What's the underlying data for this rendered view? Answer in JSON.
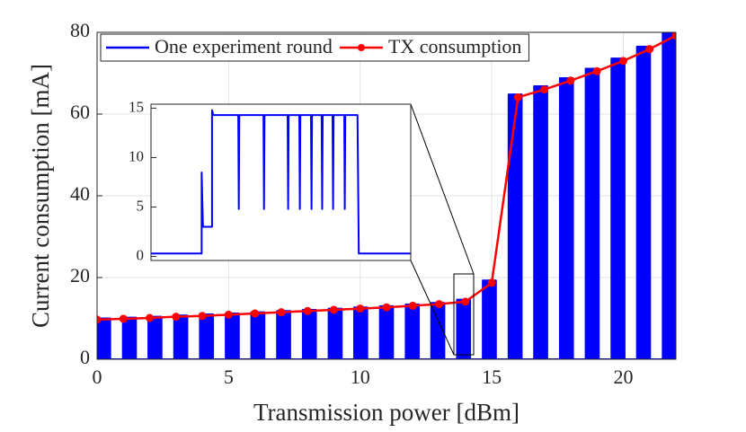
{
  "chart_data": [
    {
      "type": "line",
      "xlabel": "Transmission power [dBm]",
      "ylabel": "Current consumption [mA]",
      "xlim": [
        0,
        22
      ],
      "xticks": [
        0,
        5,
        10,
        15,
        20
      ],
      "ylim": [
        0,
        80
      ],
      "yticks": [
        0,
        20,
        40,
        60,
        80
      ],
      "grid": true,
      "legend": "northwest",
      "series": [
        {
          "name": "One experiment round",
          "color": "#0000ff",
          "fill": true,
          "x": [
            0,
            0,
            0.5,
            0.5,
            0.98,
            0.98,
            1.48,
            1.48,
            1.95,
            1.95,
            2.45,
            2.45,
            2.93,
            2.93,
            3.43,
            3.43,
            3.91,
            3.91,
            4.41,
            4.41,
            4.89,
            4.89,
            5.39,
            5.39,
            5.86,
            5.86,
            6.36,
            6.36,
            6.84,
            6.84,
            7.34,
            7.34,
            7.82,
            7.82,
            8.32,
            8.32,
            8.8,
            8.8,
            9.3,
            9.3,
            9.77,
            9.77,
            10.27,
            10.27,
            10.75,
            10.75,
            11.25,
            11.25,
            11.73,
            11.73,
            12.23,
            12.23,
            12.7,
            12.7,
            13.2,
            13.2,
            13.68,
            13.68,
            14.18,
            14.18,
            14.66,
            14.66,
            15.16,
            15.16,
            15.64,
            15.64,
            16.14,
            16.14,
            16.61,
            16.61,
            17.11,
            17.11,
            17.59,
            17.59,
            18.09,
            18.09,
            18.57,
            18.57,
            19.07,
            19.07,
            19.55,
            19.55,
            20.05,
            20.05,
            20.52,
            20.52,
            21.02,
            21.02,
            21.5,
            21.5,
            22,
            22
          ],
          "values": [
            0,
            10,
            10,
            0,
            0,
            10.2,
            10.2,
            0,
            0,
            10.4,
            10.4,
            0,
            0,
            10.7,
            10.7,
            0,
            0,
            11,
            11,
            0,
            0,
            11.2,
            11.2,
            0,
            0,
            11.5,
            11.5,
            0,
            0,
            11.8,
            11.8,
            0,
            0,
            12.1,
            12.1,
            0,
            0,
            12.4,
            12.4,
            0,
            0,
            12.7,
            12.7,
            0,
            0,
            13,
            13,
            0,
            0,
            13.4,
            13.4,
            0,
            0,
            13.8,
            13.8,
            0,
            0,
            14.6,
            14.6,
            0,
            0,
            19.3,
            19.3,
            0,
            0,
            64.8,
            64.8,
            0,
            0,
            66.8,
            66.8,
            0,
            0,
            68.8,
            68.8,
            0,
            0,
            71.1,
            71.1,
            0,
            0,
            73.6,
            73.6,
            0,
            0,
            76.5,
            76.5,
            0,
            0,
            80,
            80,
            0
          ]
        },
        {
          "name": "TX consumption",
          "color": "#ff0000",
          "marker": true,
          "x": [
            0,
            1,
            2,
            3,
            4,
            5,
            6,
            7,
            8,
            9,
            10,
            11,
            12,
            13,
            14,
            15,
            16,
            17,
            18,
            19,
            20,
            21,
            22
          ],
          "values": [
            9.7,
            9.9,
            10.1,
            10.4,
            10.6,
            10.9,
            11.2,
            11.5,
            11.8,
            12.1,
            12.4,
            12.7,
            13.1,
            13.5,
            14.1,
            18.7,
            64.1,
            66.0,
            68.2,
            70.5,
            73.0,
            75.9,
            79.2
          ]
        }
      ]
    },
    {
      "type": "line",
      "xlim": [
        0,
        1
      ],
      "ylim": [
        -0.4,
        15.4
      ],
      "yticks": [
        0,
        5,
        10,
        15
      ],
      "grid": false,
      "series": [
        {
          "color": "#0000ff",
          "x": [
            0,
            0.195,
            0.195,
            0.2,
            0.235,
            0.235,
            0.24,
            0.336,
            0.338,
            0.34,
            0.433,
            0.435,
            0.437,
            0.526,
            0.528,
            0.53,
            0.571,
            0.573,
            0.575,
            0.616,
            0.618,
            0.62,
            0.657,
            0.659,
            0.661,
            0.699,
            0.701,
            0.703,
            0.744,
            0.746,
            0.748,
            0.795,
            0.8,
            1
          ],
          "values": [
            0.3,
            0.3,
            8.5,
            3,
            3,
            14.8,
            14.3,
            14.3,
            4.8,
            14.3,
            14.3,
            4.8,
            14.3,
            14.3,
            4.8,
            14.3,
            14.3,
            4.8,
            14.3,
            14.3,
            4.8,
            14.3,
            14.3,
            4.8,
            14.3,
            14.3,
            4.8,
            14.3,
            14.3,
            4.8,
            14.3,
            14.3,
            0.3,
            0.3
          ]
        }
      ]
    }
  ]
}
